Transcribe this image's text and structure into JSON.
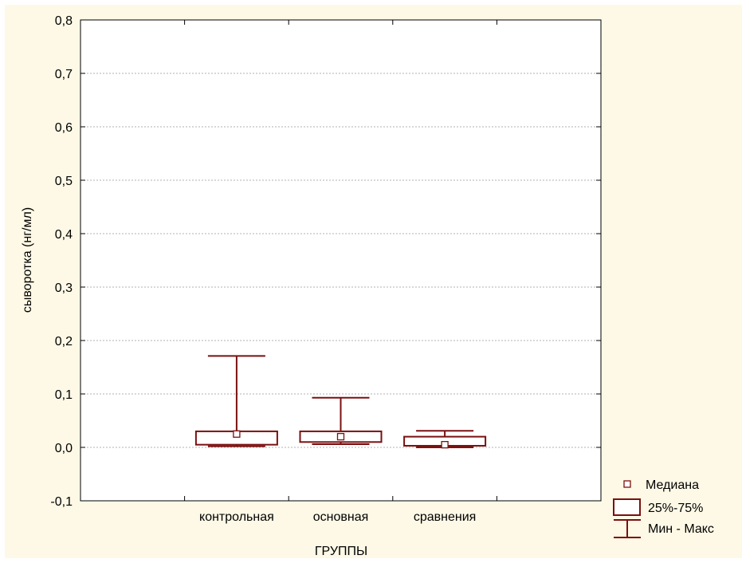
{
  "colors": {
    "background": "#FEF9E6",
    "plot_background": "#ffffff",
    "box_color": "#7A1010",
    "grid_color": "#b0b0b0",
    "frame_color": "#000000"
  },
  "chart_data": {
    "type": "boxplot",
    "title": "",
    "xlabel": "ГРУППЫ",
    "ylabel": "сыворотка (нг/мл)",
    "ylim": [
      -0.1,
      0.8
    ],
    "yticks": [
      -0.1,
      0.0,
      0.1,
      0.2,
      0.3,
      0.4,
      0.5,
      0.6,
      0.7,
      0.8
    ],
    "ytick_labels": [
      "-0,1",
      "0,0",
      "0,1",
      "0,2",
      "0,3",
      "0,4",
      "0,5",
      "0,6",
      "0,7",
      "0,8"
    ],
    "grid": "horizontal dashed",
    "categories": [
      "контрольная",
      "основная",
      "сравнения"
    ],
    "boxes": [
      {
        "category": "контрольная",
        "min": 0.002,
        "q1": 0.005,
        "median": 0.025,
        "q3": 0.03,
        "max": 0.171
      },
      {
        "category": "основная",
        "min": 0.006,
        "q1": 0.01,
        "median": 0.02,
        "q3": 0.03,
        "max": 0.093
      },
      {
        "category": "сравнения",
        "min": 0.0,
        "q1": 0.003,
        "median": 0.005,
        "q3": 0.02,
        "max": 0.031
      }
    ],
    "legend": {
      "placement": "bottom-right",
      "items": [
        {
          "symbol": "median",
          "label": "Медиана"
        },
        {
          "symbol": "box",
          "label": "25%-75%"
        },
        {
          "symbol": "whisker",
          "label": "Мин - Макс"
        }
      ]
    }
  }
}
